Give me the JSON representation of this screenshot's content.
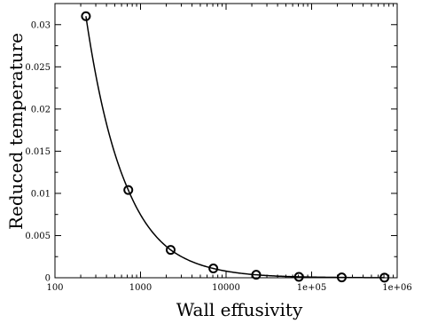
{
  "chart_data": {
    "type": "scatter",
    "xlabel": "Wall effusivity",
    "ylabel": "Reduced temperature",
    "xscale": "log",
    "xlim": [
      100,
      1000000
    ],
    "ylim": [
      0,
      0.0325
    ],
    "x_ticks": [
      {
        "value": 100,
        "label": "100"
      },
      {
        "value": 1000,
        "label": "1000"
      },
      {
        "value": 10000,
        "label": "10000"
      },
      {
        "value": 100000,
        "label": "1e+05"
      },
      {
        "value": 1000000,
        "label": "1e+06"
      }
    ],
    "y_ticks": [
      {
        "value": 0,
        "label": "0"
      },
      {
        "value": 0.005,
        "label": "0.005"
      },
      {
        "value": 0.01,
        "label": "0.01"
      },
      {
        "value": 0.015,
        "label": "0.015"
      },
      {
        "value": 0.02,
        "label": "0.02"
      },
      {
        "value": 0.025,
        "label": "0.025"
      },
      {
        "value": 0.03,
        "label": "0.03"
      }
    ],
    "grid": false,
    "series": [
      {
        "marker": "open-circle",
        "line": "smooth-fit",
        "color": "#000000",
        "x": [
          230,
          720,
          2250,
          7100,
          22500,
          71000,
          225000,
          710000
        ],
        "y": [
          0.031,
          0.0104,
          0.0033,
          0.0011,
          0.00035,
          0.00011,
          4e-05,
          1e-05
        ]
      }
    ]
  }
}
